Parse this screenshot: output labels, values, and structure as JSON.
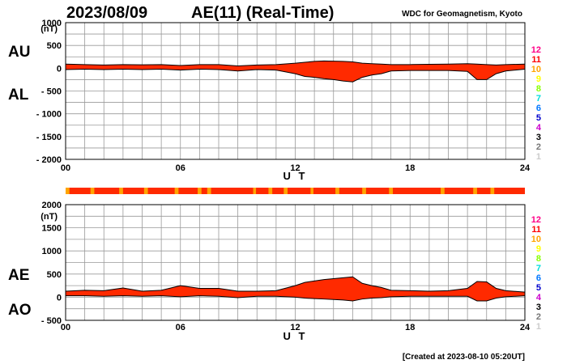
{
  "header": {
    "date": "2023/08/09",
    "title": "AE(11) (Real-Time)",
    "credit": "WDC for Geomagnetism, Kyoto"
  },
  "footer": {
    "created": "[Created at 2023-08-10 05:20UT]"
  },
  "colors": {
    "fill": "#ff2a00",
    "bar_main": "#ff2a00",
    "bar_alt": "#ffa500",
    "line": "#000000",
    "grid": "#999999"
  },
  "legend": [
    {
      "label": "12",
      "color": "#ff0088"
    },
    {
      "label": "11",
      "color": "#ff0000"
    },
    {
      "label": "10",
      "color": "#ffa500"
    },
    {
      "label": "9",
      "color": "#ffff00"
    },
    {
      "label": "8",
      "color": "#88ff00"
    },
    {
      "label": "7",
      "color": "#00dddd"
    },
    {
      "label": "6",
      "color": "#0077ff"
    },
    {
      "label": "5",
      "color": "#0000cc"
    },
    {
      "label": "4",
      "color": "#cc00cc"
    },
    {
      "label": "3",
      "color": "#000000"
    },
    {
      "label": "2",
      "color": "#777777"
    },
    {
      "label": "1",
      "color": "#cccccc"
    }
  ],
  "station_bar": {
    "segments": [
      {
        "start": 0.0,
        "end": 0.2,
        "count": 10
      },
      {
        "start": 1.3,
        "end": 1.5,
        "count": 10
      },
      {
        "start": 2.8,
        "end": 3.0,
        "count": 10
      },
      {
        "start": 4.1,
        "end": 4.3,
        "count": 10
      },
      {
        "start": 5.7,
        "end": 5.9,
        "count": 10
      },
      {
        "start": 6.9,
        "end": 7.1,
        "count": 10
      },
      {
        "start": 7.4,
        "end": 7.6,
        "count": 10
      },
      {
        "start": 9.8,
        "end": 9.95,
        "count": 10
      },
      {
        "start": 10.6,
        "end": 10.8,
        "count": 10
      },
      {
        "start": 11.4,
        "end": 11.6,
        "count": 10
      },
      {
        "start": 12.8,
        "end": 12.95,
        "count": 10
      },
      {
        "start": 14.1,
        "end": 14.3,
        "count": 10
      },
      {
        "start": 15.5,
        "end": 15.7,
        "count": 10
      },
      {
        "start": 16.9,
        "end": 17.1,
        "count": 10
      },
      {
        "start": 19.6,
        "end": 19.8,
        "count": 10
      },
      {
        "start": 21.3,
        "end": 21.5,
        "count": 10
      },
      {
        "start": 22.2,
        "end": 22.4,
        "count": 10
      }
    ]
  },
  "chart_data": [
    {
      "type": "area",
      "xlabel": "U T",
      "ylabel": "(nT)",
      "side_labels": {
        "upper": "AU",
        "lower": "AL"
      },
      "xlim": [
        0,
        24
      ],
      "ylim": [
        -2000,
        1000
      ],
      "xticks": [
        0,
        6,
        12,
        18,
        24
      ],
      "xtick_labels": [
        "00",
        "06",
        "12",
        "18",
        "24"
      ],
      "yticks": [
        1000,
        500,
        0,
        -500,
        -1000,
        -1500,
        -2000
      ],
      "ytick_labels": [
        "1000",
        "500",
        "0",
        "- 500",
        "- 1000",
        "- 1500",
        "- 2000"
      ],
      "grid": true,
      "series": [
        {
          "name": "AU",
          "x": [
            0,
            1,
            2,
            3,
            4,
            5,
            6,
            7,
            8,
            9,
            10,
            11,
            12,
            12.5,
            13,
            13.5,
            14,
            14.5,
            15,
            15.5,
            16,
            16.5,
            17,
            18,
            19,
            20,
            21,
            21.5,
            22,
            22.5,
            23,
            24
          ],
          "y": [
            90,
            80,
            70,
            80,
            75,
            80,
            60,
            80,
            80,
            50,
            70,
            80,
            110,
            130,
            150,
            160,
            155,
            150,
            140,
            110,
            100,
            90,
            80,
            80,
            85,
            90,
            100,
            90,
            80,
            70,
            80,
            90
          ]
        },
        {
          "name": "AL",
          "x": [
            0,
            1,
            2,
            3,
            4,
            5,
            6,
            7,
            8,
            9,
            10,
            11,
            12,
            12.5,
            13,
            13.5,
            14,
            14.5,
            15,
            15.5,
            16,
            16.5,
            17,
            18,
            19,
            20,
            21,
            21.5,
            22,
            22.5,
            23,
            24
          ],
          "y": [
            -30,
            -20,
            -30,
            -20,
            -30,
            -20,
            -40,
            -20,
            -30,
            -60,
            -30,
            -40,
            -120,
            -180,
            -200,
            -230,
            -250,
            -280,
            -300,
            -200,
            -150,
            -120,
            -60,
            -50,
            -50,
            -50,
            -70,
            -250,
            -250,
            -120,
            -60,
            -20
          ]
        }
      ]
    },
    {
      "type": "area",
      "xlabel": "U T",
      "ylabel": "(nT)",
      "side_labels": {
        "upper": "AE",
        "lower": "AO"
      },
      "xlim": [
        0,
        24
      ],
      "ylim": [
        -500,
        2000
      ],
      "xticks": [
        0,
        6,
        12,
        18,
        24
      ],
      "xtick_labels": [
        "00",
        "06",
        "12",
        "18",
        "24"
      ],
      "yticks": [
        2000,
        1500,
        1000,
        500,
        0,
        -500
      ],
      "ytick_labels": [
        "2000",
        "1500",
        "1000",
        "500",
        "0",
        "- 500"
      ],
      "grid": true,
      "series": [
        {
          "name": "AE",
          "x": [
            0,
            1,
            2,
            3,
            4,
            5,
            6,
            7,
            8,
            9,
            10,
            11,
            12,
            12.5,
            13,
            13.5,
            14,
            14.5,
            15,
            15.5,
            16,
            16.5,
            17,
            18,
            19,
            20,
            21,
            21.5,
            22,
            22.5,
            23,
            24
          ],
          "y": [
            130,
            150,
            140,
            200,
            130,
            150,
            250,
            190,
            190,
            130,
            130,
            140,
            250,
            320,
            350,
            380,
            400,
            420,
            440,
            300,
            250,
            210,
            150,
            140,
            130,
            140,
            190,
            340,
            330,
            190,
            140,
            110
          ]
        },
        {
          "name": "AO",
          "x": [
            0,
            1,
            2,
            3,
            4,
            5,
            6,
            7,
            8,
            9,
            10,
            11,
            12,
            12.5,
            13,
            13.5,
            14,
            14.5,
            15,
            15.5,
            16,
            16.5,
            17,
            18,
            19,
            20,
            21,
            21.5,
            22,
            22.5,
            23,
            24
          ],
          "y": [
            30,
            30,
            20,
            30,
            20,
            30,
            10,
            30,
            20,
            -10,
            20,
            20,
            0,
            -20,
            -30,
            -40,
            -50,
            -60,
            -80,
            -40,
            -20,
            -10,
            10,
            20,
            20,
            20,
            20,
            -80,
            -80,
            -20,
            10,
            30
          ]
        }
      ]
    }
  ]
}
